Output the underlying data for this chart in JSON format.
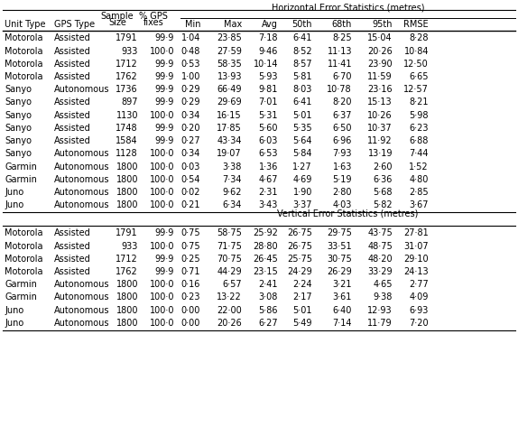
{
  "title_horiz": "Horizontal Error Statistics (metres)",
  "title_vert": "Vertical Error Statistics (metres)",
  "horiz_data": [
    [
      "Motorola",
      "Assisted",
      "1791",
      "99·9",
      "1·04",
      "23·85",
      "7·18",
      "6·41",
      "8·25",
      "15·04",
      "8·28"
    ],
    [
      "Motorola",
      "Assisted",
      "933",
      "100·0",
      "0·48",
      "27·59",
      "9·46",
      "8·52",
      "11·13",
      "20·26",
      "10·84"
    ],
    [
      "Motorola",
      "Assisted",
      "1712",
      "99·9",
      "0·53",
      "58·35",
      "10·14",
      "8·57",
      "11·41",
      "23·90",
      "12·50"
    ],
    [
      "Motorola",
      "Assisted",
      "1762",
      "99·9",
      "1·00",
      "13·93",
      "5·93",
      "5·81",
      "6·70",
      "11·59",
      "6·65"
    ],
    [
      "Sanyo",
      "Autonomous",
      "1736",
      "99·9",
      "0·29",
      "66·49",
      "9·81",
      "8·03",
      "10·78",
      "23·16",
      "12·57"
    ],
    [
      "Sanyo",
      "Assisted",
      "897",
      "99·9",
      "0·29",
      "29·69",
      "7·01",
      "6·41",
      "8·20",
      "15·13",
      "8·21"
    ],
    [
      "Sanyo",
      "Assisted",
      "1130",
      "100·0",
      "0·34",
      "16·15",
      "5·31",
      "5·01",
      "6·37",
      "10·26",
      "5·98"
    ],
    [
      "Sanyo",
      "Assisted",
      "1748",
      "99·9",
      "0·20",
      "17·85",
      "5·60",
      "5·35",
      "6·50",
      "10·37",
      "6·23"
    ],
    [
      "Sanyo",
      "Assisted",
      "1584",
      "99·9",
      "0·27",
      "43·34",
      "6·03",
      "5·64",
      "6·96",
      "11·92",
      "6·88"
    ],
    [
      "Sanyo",
      "Autonomous",
      "1128",
      "100·0",
      "0·34",
      "19·07",
      "6·53",
      "5·84",
      "7·93",
      "13·19",
      "7·44"
    ],
    [
      "Garmin",
      "Autonomous",
      "1800",
      "100·0",
      "0·03",
      "3·38",
      "1·36",
      "1·27",
      "1·63",
      "2·60",
      "1·52"
    ],
    [
      "Garmin",
      "Autonomous",
      "1800",
      "100·0",
      "0·54",
      "7·34",
      "4·67",
      "4·69",
      "5·19",
      "6·36",
      "4·80"
    ],
    [
      "Juno",
      "Autonomous",
      "1800",
      "100·0",
      "0·02",
      "9·62",
      "2·31",
      "1·90",
      "2·80",
      "5·68",
      "2·85"
    ],
    [
      "Juno",
      "Autonomous",
      "1800",
      "100·0",
      "0·21",
      "6·34",
      "3·43",
      "3·37",
      "4·03",
      "5·82",
      "3·67"
    ]
  ],
  "vert_data": [
    [
      "Motorola",
      "Assisted",
      "1791",
      "99·9",
      "0·75",
      "58·75",
      "25·92",
      "26·75",
      "29·75",
      "43·75",
      "27·81"
    ],
    [
      "Motorola",
      "Assisted",
      "933",
      "100·0",
      "0·75",
      "71·75",
      "28·80",
      "26·75",
      "33·51",
      "48·75",
      "31·07"
    ],
    [
      "Motorola",
      "Assisted",
      "1712",
      "99·9",
      "0·25",
      "70·75",
      "26·45",
      "25·75",
      "30·75",
      "48·20",
      "29·10"
    ],
    [
      "Motorola",
      "Assisted",
      "1762",
      "99·9",
      "0·71",
      "44·29",
      "23·15",
      "24·29",
      "26·29",
      "33·29",
      "24·13"
    ],
    [
      "Garmin",
      "Autonomous",
      "1800",
      "100·0",
      "0·16",
      "6·57",
      "2·41",
      "2·24",
      "3·21",
      "4·65",
      "2·77"
    ],
    [
      "Garmin",
      "Autonomous",
      "1800",
      "100·0",
      "0·23",
      "13·22",
      "3·08",
      "2·17",
      "3·61",
      "9·38",
      "4·09"
    ],
    [
      "Juno",
      "Autonomous",
      "1800",
      "100·0",
      "0·00",
      "22·00",
      "5·86",
      "5·01",
      "6·40",
      "12·93",
      "6·93"
    ],
    [
      "Juno",
      "Autonomous",
      "1800",
      "100·0",
      "0·00",
      "20·26",
      "6·27",
      "5·49",
      "7·14",
      "11·79",
      "7·20"
    ]
  ],
  "bg_color": "#ffffff",
  "text_color": "#000000",
  "font_size": 7.0
}
